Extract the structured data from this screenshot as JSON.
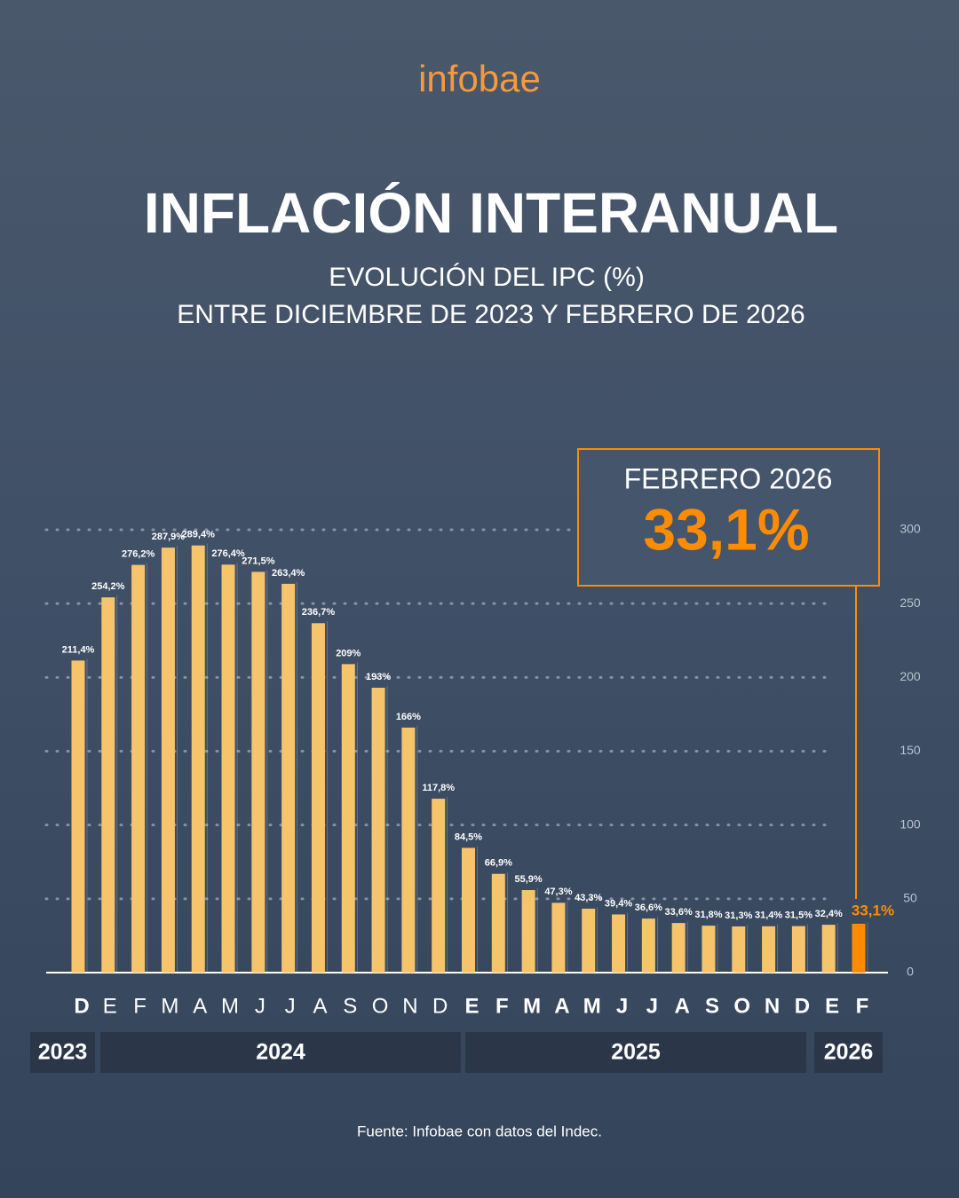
{
  "logo": "infobae",
  "chart_data": {
    "type": "bar",
    "title": "INFLACIÓN INTERANUAL",
    "subtitle": [
      "EVOLUCIÓN DEL IPC (%)",
      "ENTRE DICIEMBRE DE 2023 Y FEBRERO DE 2026"
    ],
    "categories": [
      "D",
      "E",
      "F",
      "M",
      "A",
      "M",
      "J",
      "J",
      "A",
      "S",
      "O",
      "N",
      "D",
      "E",
      "F",
      "M",
      "A",
      "M",
      "J",
      "J",
      "A",
      "S",
      "O",
      "N",
      "D",
      "E",
      "F"
    ],
    "years": [
      "2023",
      "2024",
      "2025",
      "2026"
    ],
    "values": [
      211.4,
      254.2,
      276.2,
      287.9,
      289.4,
      276.4,
      271.5,
      263.4,
      236.7,
      209,
      193,
      166,
      117.8,
      84.5,
      66.9,
      55.9,
      47.3,
      43.3,
      39.4,
      36.6,
      33.6,
      31.8,
      31.3,
      31.4,
      31.5,
      32.4,
      33.1
    ],
    "value_labels": [
      "211,4%",
      "254,2%",
      "276,2%",
      "287,9%",
      "289,4%",
      "276,4%",
      "271,5%",
      "263,4%",
      "236,7%",
      "209%",
      "193%",
      "166%",
      "117,8%",
      "84,5%",
      "66,9%",
      "55,9%",
      "47,3%",
      "43,3%",
      "39,4%",
      "36,6%",
      "33,6%",
      "31,8%",
      "31,3%",
      "31,4%",
      "31,5%",
      "32,4%",
      "33,1%"
    ],
    "color": "#f6c46b",
    "highlight_color": "#ff8c00",
    "ylim": [
      0,
      300
    ],
    "yticks": [
      0,
      50,
      100,
      150,
      200,
      250,
      300
    ],
    "grid": true,
    "callout": {
      "label": "FEBRERO 2026",
      "value_label": "33,1%"
    }
  },
  "source": "Fuente: Infobae con datos del Indec."
}
